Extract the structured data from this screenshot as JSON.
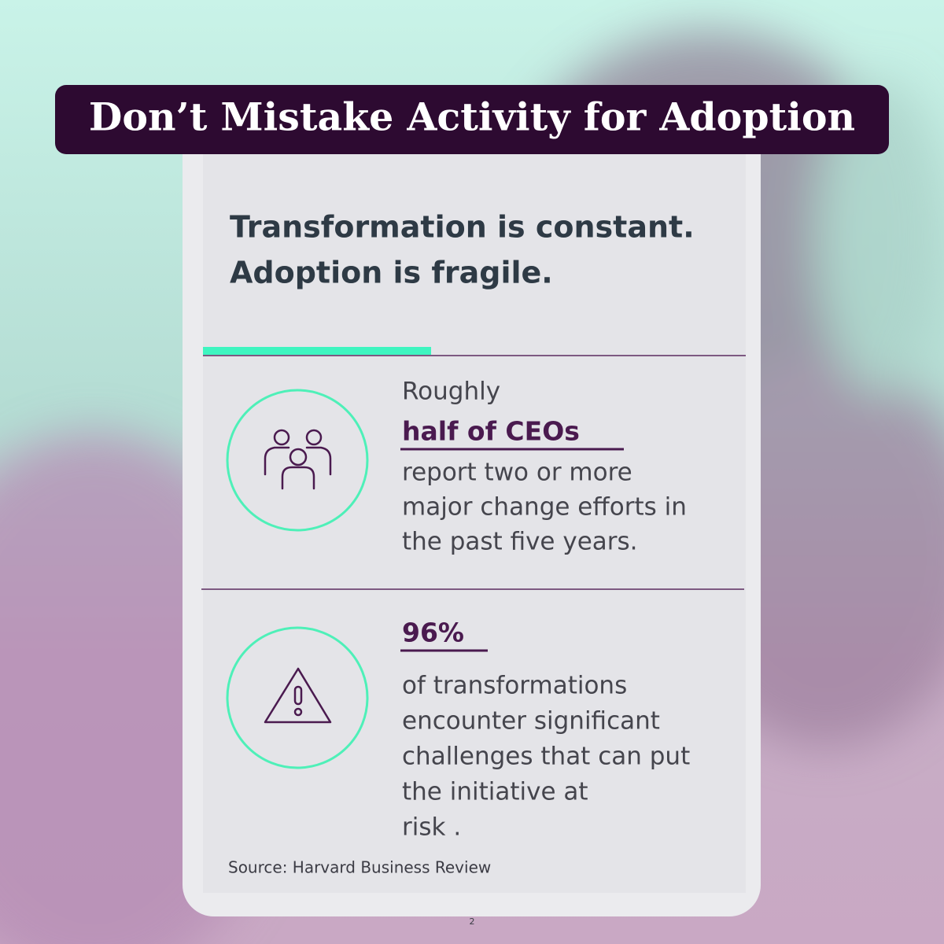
{
  "title": "Don’t Mistake Activity for Adoption",
  "headline": [
    "Transformation is constant.",
    "Adoption is fragile."
  ],
  "stats": [
    {
      "lead": "Roughly",
      "highlight": "half of CEOs",
      "lines": [
        "report two or more",
        "major change efforts in",
        "the past five years."
      ]
    },
    {
      "highlight": "96%",
      "lines": [
        "of transformations",
        "encounter significant",
        "challenges that can put",
        "the initiative at",
        "risk ."
      ]
    }
  ],
  "source": "Source: Harvard Business Review",
  "page_number": "2"
}
